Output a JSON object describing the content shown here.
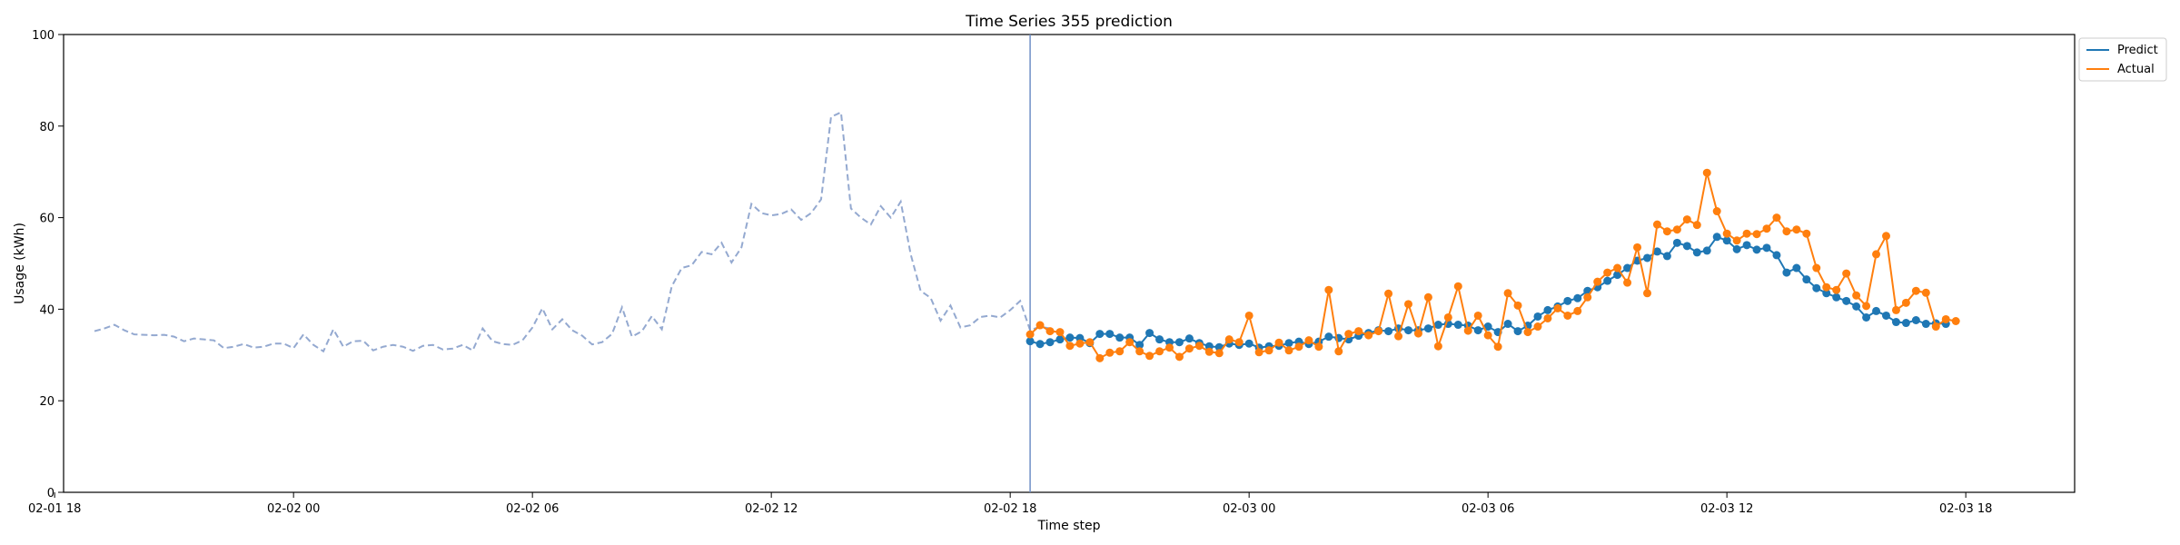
{
  "chart_data": {
    "type": "line",
    "title": "Time Series 355 prediction",
    "xlabel": "Time step",
    "ylabel": "Usage (kWh)",
    "ylim": [
      0,
      100
    ],
    "yticks": [
      0,
      20,
      40,
      60,
      80,
      100
    ],
    "xticks": [
      "02-01 18",
      "02-02 00",
      "02-02 06",
      "02-02 12",
      "02-02 18",
      "02-03 00",
      "02-03 06",
      "02-03 12",
      "02-03 18"
    ],
    "x_start": "2025-02-01 19:00",
    "x_end": "2025-02-03 19:00",
    "interval_minutes": 15,
    "grid": false,
    "legend_position": "top-right (outside plot)",
    "vline_at": "2025-02-02 18:30",
    "colors": {
      "history": "#94a9d0",
      "predict": "#1f77b4",
      "actual": "#ff7f0e",
      "vline": "#6f8fc6"
    },
    "history": {
      "start": "2025-02-01 19:00",
      "values": [
        35.2,
        35.8,
        36.6,
        35.4,
        34.5,
        34.4,
        34.3,
        34.4,
        34.0,
        33.0,
        33.6,
        33.4,
        33.2,
        31.5,
        31.8,
        32.4,
        31.6,
        31.8,
        32.5,
        32.5,
        31.5,
        34.5,
        32.2,
        30.8,
        35.6,
        31.8,
        33.0,
        33.1,
        31.0,
        31.8,
        32.2,
        31.8,
        30.9,
        32.0,
        32.2,
        31.2,
        31.4,
        32.2,
        31.0,
        35.8,
        33.0,
        32.4,
        32.2,
        33.2,
        36.0,
        40.2,
        35.6,
        37.8,
        35.4,
        34.2,
        32.3,
        32.8,
        34.6,
        40.4,
        34.0,
        35.2,
        38.5,
        35.6,
        45.0,
        49.0,
        49.6,
        52.5,
        52.0,
        54.5,
        50.2,
        53.5,
        63.0,
        61.0,
        60.5,
        60.8,
        61.8,
        59.5,
        61.0,
        64.0,
        82.0,
        83.0,
        62.0,
        60.0,
        58.5,
        62.5,
        60.0,
        63.5,
        52.0,
        44.0,
        42.5,
        37.5,
        40.8,
        36.0,
        36.5,
        38.3,
        38.6,
        38.2,
        39.8,
        41.8,
        35.4,
        36.2,
        35.8
      ]
    },
    "series": [
      {
        "name": "Predict",
        "start": "2025-02-02 18:30",
        "values": [
          33.0,
          32.4,
          32.8,
          33.4,
          33.8,
          33.7,
          32.6,
          34.6,
          34.6,
          33.8,
          33.8,
          32.2,
          34.8,
          33.4,
          32.8,
          32.8,
          33.6,
          32.6,
          31.9,
          31.7,
          32.5,
          32.2,
          32.5,
          31.6,
          31.9,
          32.0,
          32.6,
          32.9,
          32.4,
          32.9,
          34.0,
          33.7,
          33.4,
          34.2,
          34.8,
          35.4,
          35.2,
          35.8,
          35.4,
          35.4,
          35.8,
          36.6,
          36.8,
          36.6,
          36.4,
          35.4,
          36.2,
          35.0,
          36.8,
          35.2,
          36.4,
          38.4,
          39.8,
          40.6,
          41.8,
          42.4,
          44.0,
          44.8,
          46.2,
          47.5,
          49.0,
          50.6,
          51.2,
          52.6,
          51.6,
          54.5,
          53.8,
          52.4,
          52.8,
          55.8,
          55.0,
          53.1,
          54.0,
          53.0,
          53.4,
          51.8,
          48.0,
          49.0,
          46.5,
          44.6,
          43.5,
          42.6,
          41.8,
          40.6,
          38.2,
          39.6,
          38.6,
          37.2,
          37.0,
          37.6,
          36.8,
          36.9,
          36.8
        ]
      },
      {
        "name": "Actual",
        "start": "2025-02-02 18:30",
        "values": [
          34.5,
          36.5,
          35.2,
          35.0,
          32.0,
          32.5,
          32.8,
          29.3,
          30.5,
          30.8,
          32.8,
          30.8,
          29.8,
          30.8,
          31.6,
          29.6,
          31.4,
          32.0,
          30.7,
          30.4,
          33.4,
          32.8,
          38.6,
          30.6,
          31.0,
          32.7,
          31.0,
          31.8,
          33.2,
          31.8,
          44.2,
          30.8,
          34.6,
          35.2,
          34.3,
          35.2,
          43.4,
          34.1,
          41.1,
          34.7,
          42.6,
          31.9,
          38.2,
          45.0,
          35.3,
          38.6,
          34.3,
          31.8,
          43.5,
          40.8,
          35.0,
          36.2,
          38.0,
          40.2,
          38.6,
          39.6,
          42.6,
          46.0,
          48.0,
          49.0,
          45.8,
          53.5,
          43.5,
          58.5,
          57.0,
          57.4,
          59.6,
          58.4,
          69.8,
          61.4,
          56.5,
          55.0,
          56.5,
          56.4,
          57.6,
          60.0,
          57.0,
          57.4,
          56.5,
          49.0,
          44.8,
          44.2,
          47.8,
          43.0,
          40.7,
          52.0,
          56.0,
          39.8,
          41.4,
          44.0,
          43.6,
          36.2,
          37.8,
          37.4
        ]
      }
    ]
  }
}
